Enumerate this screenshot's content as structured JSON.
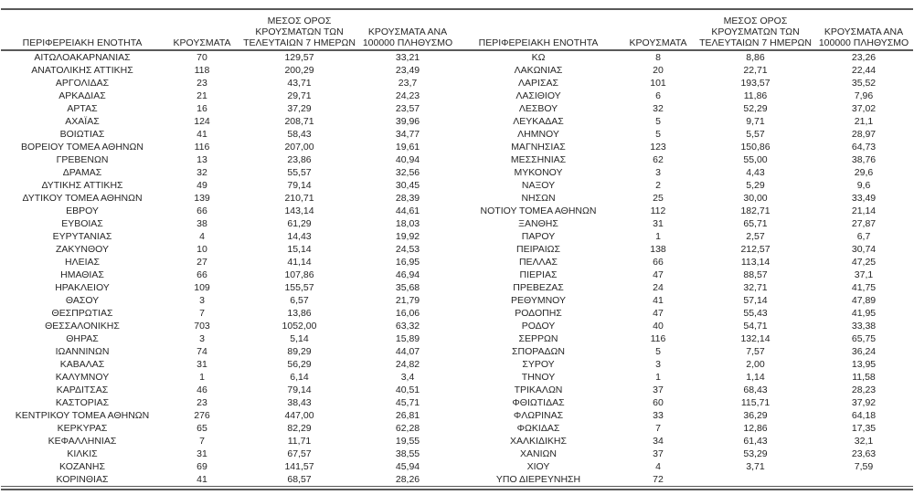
{
  "columns": [
    "ΠΕΡΙΦΕΡΕΙΑΚΗ ΕΝΟΤΗΤΑ",
    "ΚΡΟΥΣΜΑΤΑ",
    "ΜΕΣΟΣ ΟΡΟΣ ΚΡΟΥΣΜΑΤΩΝ ΤΩΝ ΤΕΛΕΥΤΑΙΩΝ 7 ΗΜΕΡΩΝ",
    "ΚΡΟΥΣΜΑΤΑ ΑΝΑ 100000 ΠΛΗΘΥΣΜΟ"
  ],
  "chart_data": {
    "type": "table",
    "title": "",
    "columns": [
      "ΠΕΡΙΦΕΡΕΙΑΚΗ ΕΝΟΤΗΤΑ",
      "ΚΡΟΥΣΜΑΤΑ",
      "ΜΕΣΟΣ ΟΡΟΣ ΚΡΟΥΣΜΑΤΩΝ ΤΩΝ ΤΕΛΕΥΤΑΙΩΝ 7 ΗΜΕΡΩΝ",
      "ΚΡΟΥΣΜΑΤΑ ΑΝΑ 100000 ΠΛΗΘΥΣΜΟ"
    ]
  },
  "left_table": {
    "rows": [
      [
        "ΑΙΤΩΛΟΑΚΑΡΝΑΝΙΑΣ",
        "70",
        "129,57",
        "33,21"
      ],
      [
        "ΑΝΑΤΟΛΙΚΗΣ ΑΤΤΙΚΗΣ",
        "118",
        "200,29",
        "23,49"
      ],
      [
        "ΑΡΓΟΛΙΔΑΣ",
        "23",
        "43,71",
        "23,7"
      ],
      [
        "ΑΡΚΑΔΙΑΣ",
        "21",
        "29,71",
        "24,23"
      ],
      [
        "ΑΡΤΑΣ",
        "16",
        "37,29",
        "23,57"
      ],
      [
        "ΑΧΑΪΑΣ",
        "124",
        "208,71",
        "39,96"
      ],
      [
        "ΒΟΙΩΤΙΑΣ",
        "41",
        "58,43",
        "34,77"
      ],
      [
        "ΒΟΡΕΙΟΥ ΤΟΜΕΑ ΑΘΗΝΩΝ",
        "116",
        "207,00",
        "19,61"
      ],
      [
        "ΓΡΕΒΕΝΩΝ",
        "13",
        "23,86",
        "40,94"
      ],
      [
        "ΔΡΑΜΑΣ",
        "32",
        "55,57",
        "32,56"
      ],
      [
        "ΔΥΤΙΚΗΣ ΑΤΤΙΚΗΣ",
        "49",
        "79,14",
        "30,45"
      ],
      [
        "ΔΥΤΙΚΟΥ ΤΟΜΕΑ ΑΘΗΝΩΝ",
        "139",
        "210,71",
        "28,39"
      ],
      [
        "ΕΒΡΟΥ",
        "66",
        "143,14",
        "44,61"
      ],
      [
        "ΕΥΒΟΙΑΣ",
        "38",
        "61,29",
        "18,03"
      ],
      [
        "ΕΥΡΥΤΑΝΙΑΣ",
        "4",
        "14,43",
        "19,92"
      ],
      [
        "ΖΑΚΥΝΘΟΥ",
        "10",
        "15,14",
        "24,53"
      ],
      [
        "ΗΛΕΙΑΣ",
        "27",
        "41,14",
        "16,95"
      ],
      [
        "ΗΜΑΘΙΑΣ",
        "66",
        "107,86",
        "46,94"
      ],
      [
        "ΗΡΑΚΛΕΙΟΥ",
        "109",
        "155,57",
        "35,68"
      ],
      [
        "ΘΑΣΟΥ",
        "3",
        "6,57",
        "21,79"
      ],
      [
        "ΘΕΣΠΡΩΤΙΑΣ",
        "7",
        "13,86",
        "16,06"
      ],
      [
        "ΘΕΣΣΑΛΟΝΙΚΗΣ",
        "703",
        "1052,00",
        "63,32"
      ],
      [
        "ΘΗΡΑΣ",
        "3",
        "5,14",
        "15,89"
      ],
      [
        "ΙΩΑΝΝΙΝΩΝ",
        "74",
        "89,29",
        "44,07"
      ],
      [
        "ΚΑΒΑΛΑΣ",
        "31",
        "56,29",
        "24,82"
      ],
      [
        "ΚΑΛΥΜΝΟΥ",
        "1",
        "6,14",
        "3,4"
      ],
      [
        "ΚΑΡΔΙΤΣΑΣ",
        "46",
        "79,14",
        "40,51"
      ],
      [
        "ΚΑΣΤΟΡΙΑΣ",
        "23",
        "38,43",
        "45,71"
      ],
      [
        "ΚΕΝΤΡΙΚΟΥ ΤΟΜΕΑ ΑΘΗΝΩΝ",
        "276",
        "447,00",
        "26,81"
      ],
      [
        "ΚΕΡΚΥΡΑΣ",
        "65",
        "82,29",
        "62,28"
      ],
      [
        "ΚΕΦΑΛΛΗΝΙΑΣ",
        "7",
        "11,71",
        "19,55"
      ],
      [
        "ΚΙΛΚΙΣ",
        "31",
        "67,57",
        "38,55"
      ],
      [
        "ΚΟΖΑΝΗΣ",
        "69",
        "141,57",
        "45,94"
      ],
      [
        "ΚΟΡΙΝΘΙΑΣ",
        "41",
        "68,57",
        "28,26"
      ]
    ]
  },
  "right_table": {
    "rows": [
      [
        "ΚΩ",
        "8",
        "8,86",
        "23,26"
      ],
      [
        "ΛΑΚΩΝΙΑΣ",
        "20",
        "22,71",
        "22,44"
      ],
      [
        "ΛΑΡΙΣΑΣ",
        "101",
        "193,57",
        "35,52"
      ],
      [
        "ΛΑΣΙΘΙΟΥ",
        "6",
        "11,86",
        "7,96"
      ],
      [
        "ΛΕΣΒΟΥ",
        "32",
        "52,29",
        "37,02"
      ],
      [
        "ΛΕΥΚΑΔΑΣ",
        "5",
        "9,71",
        "21,1"
      ],
      [
        "ΛΗΜΝΟΥ",
        "5",
        "5,57",
        "28,97"
      ],
      [
        "ΜΑΓΝΗΣΙΑΣ",
        "123",
        "150,86",
        "64,73"
      ],
      [
        "ΜΕΣΣΗΝΙΑΣ",
        "62",
        "55,00",
        "38,76"
      ],
      [
        "ΜΥΚΟΝΟΥ",
        "3",
        "4,43",
        "29,6"
      ],
      [
        "ΝΑΞΟΥ",
        "2",
        "5,29",
        "9,6"
      ],
      [
        "ΝΗΣΩΝ",
        "25",
        "30,00",
        "33,49"
      ],
      [
        "ΝΟΤΙΟΥ ΤΟΜΕΑ ΑΘΗΝΩΝ",
        "112",
        "182,71",
        "21,14"
      ],
      [
        "ΞΑΝΘΗΣ",
        "31",
        "65,71",
        "27,87"
      ],
      [
        "ΠΑΡΟΥ",
        "1",
        "2,57",
        "6,7"
      ],
      [
        "ΠΕΙΡΑΙΩΣ",
        "138",
        "212,57",
        "30,74"
      ],
      [
        "ΠΕΛΛΑΣ",
        "66",
        "113,14",
        "47,25"
      ],
      [
        "ΠΙΕΡΙΑΣ",
        "47",
        "88,57",
        "37,1"
      ],
      [
        "ΠΡΕΒΕΖΑΣ",
        "24",
        "32,71",
        "41,75"
      ],
      [
        "ΡΕΘΥΜΝΟΥ",
        "41",
        "57,14",
        "47,89"
      ],
      [
        "ΡΟΔΟΠΗΣ",
        "47",
        "55,43",
        "41,95"
      ],
      [
        "ΡΟΔΟΥ",
        "40",
        "54,71",
        "33,38"
      ],
      [
        "ΣΕΡΡΩΝ",
        "116",
        "132,14",
        "65,75"
      ],
      [
        "ΣΠΟΡΑΔΩΝ",
        "5",
        "7,57",
        "36,24"
      ],
      [
        "ΣΥΡΟΥ",
        "3",
        "2,00",
        "13,95"
      ],
      [
        "ΤΗΝΟΥ",
        "1",
        "1,14",
        "11,58"
      ],
      [
        "ΤΡΙΚΑΛΩΝ",
        "37",
        "68,43",
        "28,23"
      ],
      [
        "ΦΘΙΩΤΙΔΑΣ",
        "60",
        "115,71",
        "37,92"
      ],
      [
        "ΦΛΩΡΙΝΑΣ",
        "33",
        "36,29",
        "64,18"
      ],
      [
        "ΦΩΚΙΔΑΣ",
        "7",
        "12,86",
        "17,35"
      ],
      [
        "ΧΑΛΚΙΔΙΚΗΣ",
        "34",
        "61,43",
        "32,1"
      ],
      [
        "ΧΑΝΙΩΝ",
        "37",
        "53,29",
        "23,63"
      ],
      [
        "ΧΙΟΥ",
        "4",
        "3,71",
        "7,59"
      ],
      [
        "ΥΠΟ ΔΙΕΡΕΥΝΗΣΗ",
        "72",
        "",
        ""
      ]
    ]
  }
}
